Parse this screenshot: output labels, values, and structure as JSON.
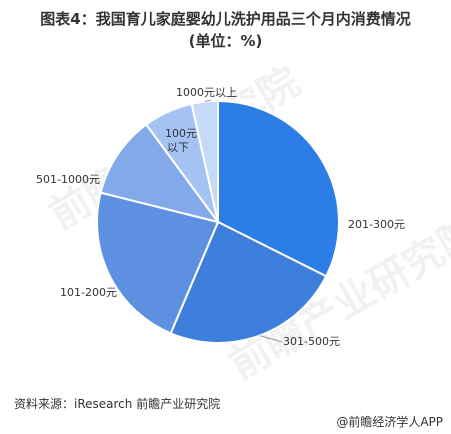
{
  "title_line1": "图表4：我国育儿家庭婴幼儿洗护用品三个月内消费情况",
  "title_line2": "(单位：%)",
  "source": "资料来源：iResearch 前瞻产业研究院",
  "brand": "@前瞻经济学人APP",
  "watermark": "前瞻产业研究院",
  "colors": {
    "s1": "#2d7de6",
    "s2": "#3f7fdc",
    "s3": "#5d90e1",
    "s4": "#83a9ea",
    "s5": "#a4c3f3",
    "s6": "#c5d9f8"
  },
  "chart_data": {
    "type": "pie",
    "title": "我国育儿家庭婴幼儿洗护用品三个月内消费情况",
    "unit": "%",
    "start_angle_deg": 0,
    "slices": [
      {
        "label": "201-300元",
        "value": 32.4
      },
      {
        "label": "301-500元",
        "value": 24.0
      },
      {
        "label": "101-200元",
        "value": 22.5
      },
      {
        "label": "501-1000元",
        "value": 11.0
      },
      {
        "label": "100元以下",
        "value": 6.6
      },
      {
        "label": "1000元以上",
        "value": 3.5
      }
    ]
  }
}
